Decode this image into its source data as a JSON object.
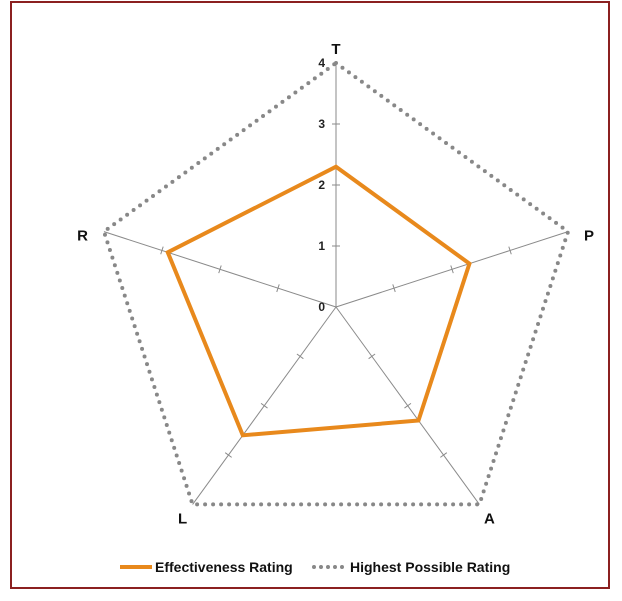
{
  "chart_data": {
    "type": "radar",
    "axes": [
      "T",
      "P",
      "A",
      "L",
      "R"
    ],
    "range": [
      0,
      4
    ],
    "tick_labels": [
      "0",
      "1",
      "2",
      "3",
      "4"
    ],
    "grid": false,
    "legend_position": "bottom",
    "series": [
      {
        "name": "Effectiveness Rating",
        "values": [
          2.3,
          2.3,
          2.3,
          2.6,
          2.9
        ],
        "color": "#e8891c",
        "style": "solid"
      },
      {
        "name": "Highest Possible Rating",
        "values": [
          4,
          4,
          4,
          4,
          4
        ],
        "color": "#888888",
        "style": "dotted"
      }
    ]
  }
}
